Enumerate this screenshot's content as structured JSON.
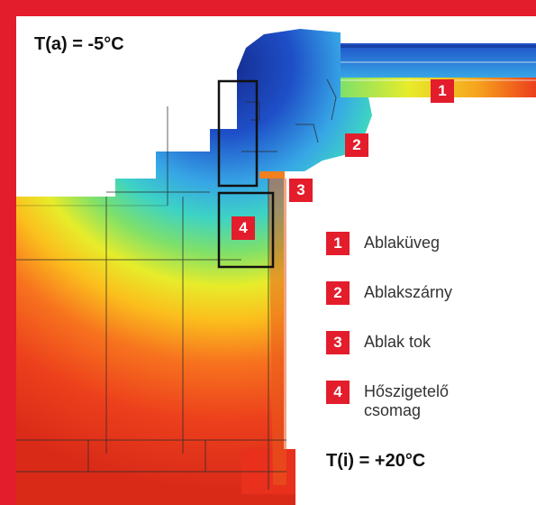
{
  "temperatures": {
    "outside": "T(a) = -5°C",
    "inside": "T(i) = +20°C"
  },
  "figure_markers": [
    "1",
    "2",
    "3",
    "4"
  ],
  "legend": [
    {
      "num": "1",
      "label": "Ablaküveg"
    },
    {
      "num": "2",
      "label": "Ablakszárny"
    },
    {
      "num": "3",
      "label": "Ablak tok"
    },
    {
      "num": "4",
      "label": "Hőszigetelő csomag"
    }
  ],
  "colors": {
    "frame": "#e31d2b",
    "badge": "#e31d2b",
    "cold": "#1f3fb0",
    "warm": "#e8301c"
  }
}
